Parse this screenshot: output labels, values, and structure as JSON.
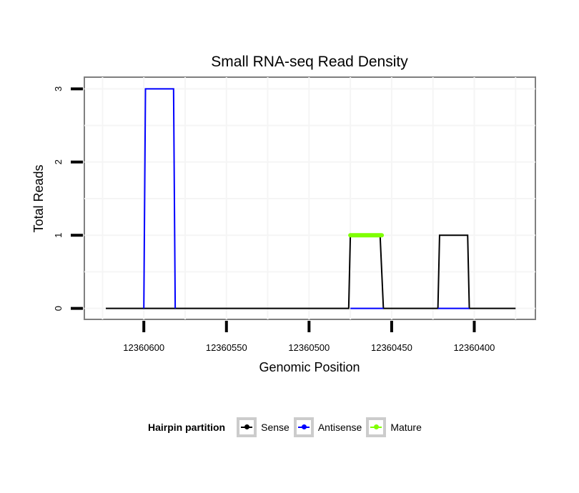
{
  "chart_data": {
    "type": "line",
    "title": "Small RNA-seq Read Density",
    "xlabel": "Genomic Position",
    "ylabel": "Total Reads",
    "x_reversed": true,
    "xlim": [
      12360636,
      12360363
    ],
    "ylim": [
      -0.15,
      3.16
    ],
    "x_ticks": [
      12360600,
      12360550,
      12360500,
      12360450,
      12360400
    ],
    "x_tick_labels": [
      "12360600",
      "12360550",
      "12360500",
      "12360450",
      "12360400"
    ],
    "y_ticks": [
      0,
      1,
      2,
      3
    ],
    "y_tick_labels": [
      "0",
      "1",
      "2",
      "3"
    ],
    "grid": true,
    "legend": {
      "title": "Hairpin partition",
      "placement": "bottom",
      "entries": [
        "Sense",
        "Antisense",
        "Mature"
      ]
    },
    "series": [
      {
        "name": "Sense",
        "color": "#000000",
        "segments": [
          [
            [
              12360623,
              0
            ],
            [
              12360476,
              0
            ],
            [
              12360475,
              1
            ],
            [
              12360457,
              1
            ],
            [
              12360455,
              0
            ],
            [
              12360422,
              0
            ],
            [
              12360421,
              1
            ],
            [
              12360404,
              1
            ],
            [
              12360403,
              0
            ],
            [
              12360375,
              0
            ]
          ]
        ]
      },
      {
        "name": "Antisense",
        "color": "#0000ff",
        "segments": [
          [
            [
              12360600,
              0
            ],
            [
              12360599,
              3
            ],
            [
              12360582,
              3
            ],
            [
              12360581,
              0
            ]
          ],
          [
            [
              12360475,
              0
            ],
            [
              12360455,
              0
            ]
          ],
          [
            [
              12360422,
              0
            ],
            [
              12360403,
              0
            ]
          ]
        ]
      },
      {
        "name": "Mature",
        "color": "#7fff00",
        "segments": [
          [
            [
              12360475,
              1
            ],
            [
              12360456,
              1
            ]
          ]
        ]
      }
    ]
  }
}
